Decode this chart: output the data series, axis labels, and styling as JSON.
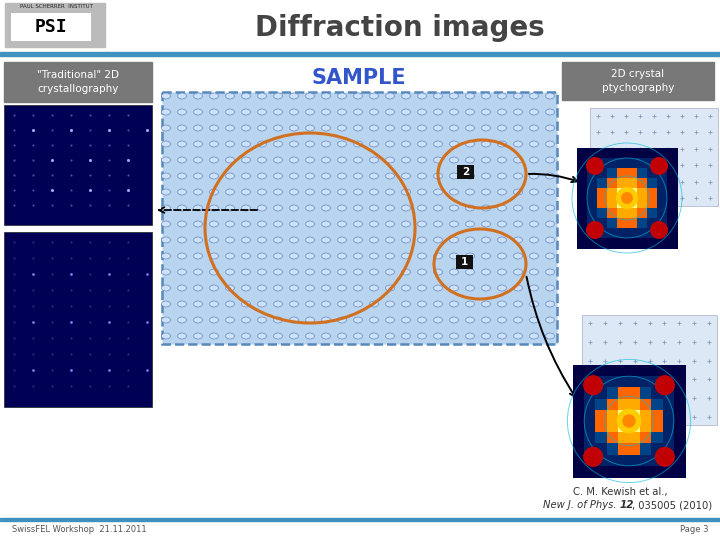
{
  "title": "Diffraction images",
  "title_fontsize": 20,
  "title_color": "#444444",
  "bg_color": "#ffffff",
  "header_line_color": "#4090c0",
  "label_traditional": "\"Traditional\" 2D\ncrystallography",
  "label_ptychography": "2D crystal\nptychography",
  "label_sample": "SAMPLE",
  "label_1": "1",
  "label_2": "2",
  "citation_line1": "C. M. Kewish et al.,",
  "citation_line2": "New J. of Phys. 12, 035005 (2010)",
  "footer_left": "SwissFEL Workshop  21.11.2011",
  "footer_right": "Page 3",
  "sample_bg": "#b8d4ee",
  "sample_border": "#5588bb",
  "circle_color": "#d07020",
  "trad_box_color": "#787878",
  "ptych_box_color": "#787878",
  "blue_dark": "#000050",
  "blue_mid": "#000088"
}
